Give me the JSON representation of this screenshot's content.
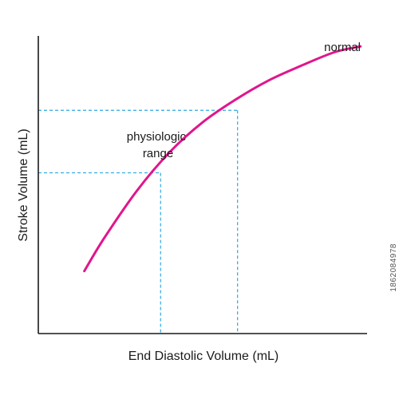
{
  "chart_data": {
    "type": "line",
    "title": "",
    "xlabel": "End Diastolic Volume (mL)",
    "ylabel": "Stroke Volume (mL)",
    "grid": false,
    "legend": "none",
    "xlim": [
      0,
      100
    ],
    "ylim": [
      0,
      100
    ],
    "series": [
      {
        "name": "normal",
        "color": "#e0168c",
        "x": [
          14,
          20,
          30,
          40,
          50,
          60,
          70,
          80,
          90,
          98
        ],
        "y": [
          21,
          32,
          48,
          61,
          71,
          78.6,
          85,
          90,
          94.5,
          96.5
        ]
      }
    ],
    "annotations": [
      {
        "text": "physiologic range",
        "lines": [
          "physiologic",
          "range"
        ]
      }
    ],
    "reference_lines": {
      "color": "#2ea8e0",
      "points": [
        {
          "x": 37.2,
          "y": 54
        },
        {
          "x": 60.6,
          "y": 75
        }
      ]
    }
  },
  "watermark_id": "1862084978"
}
